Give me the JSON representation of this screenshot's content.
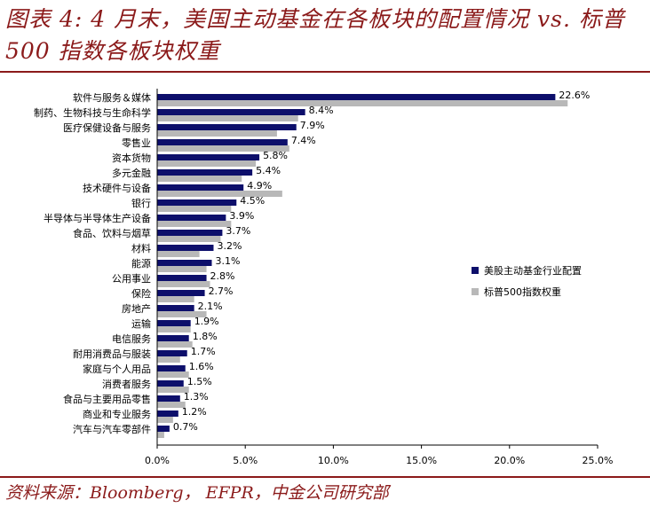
{
  "header": {
    "title": "图表 4: 4 月末，美国主动基金在各板块的配置情况 vs. 标普500 指数各板块权重"
  },
  "footer": {
    "source": "资料来源：Bloomberg，  EFPR，中金公司研究部"
  },
  "chart_data": {
    "type": "bar",
    "orientation": "horizontal",
    "title": "",
    "xlabel": "",
    "ylabel": "",
    "xlim": [
      0,
      25
    ],
    "xticks": [
      0,
      5,
      10,
      15,
      20,
      25
    ],
    "xtick_labels": [
      "0.0%",
      "5.0%",
      "10.0%",
      "15.0%",
      "20.0%",
      "25.0%"
    ],
    "legend_position": "right",
    "categories": [
      "软件与服务＆媒体",
      "制药、生物科技与生命科学",
      "医疗保健设备与服务",
      "零售业",
      "资本货物",
      "多元金融",
      "技术硬件与设备",
      "银行",
      "半导体与半导体生产设备",
      "食品、饮料与烟草",
      "材料",
      "能源",
      "公用事业",
      "保险",
      "房地产",
      "运输",
      "电信服务",
      "耐用消费品与服装",
      "家庭与个人用品",
      "消费者服务",
      "食品与主要用品零售",
      "商业和专业服务",
      "汽车与汽车零部件"
    ],
    "series": [
      {
        "name": "美股主动基金行业配置",
        "color": "#0d0f6b",
        "values": [
          22.6,
          8.4,
          7.9,
          7.4,
          5.8,
          5.4,
          4.9,
          4.5,
          3.9,
          3.7,
          3.2,
          3.1,
          2.8,
          2.7,
          2.1,
          1.9,
          1.8,
          1.7,
          1.6,
          1.5,
          1.3,
          1.2,
          0.7
        ],
        "labels": [
          "22.6%",
          "8.4%",
          "7.9%",
          "7.4%",
          "5.8%",
          "5.4%",
          "4.9%",
          "4.5%",
          "3.9%",
          "3.7%",
          "3.2%",
          "3.1%",
          "2.8%",
          "2.7%",
          "2.1%",
          "1.9%",
          "1.8%",
          "1.7%",
          "1.6%",
          "1.5%",
          "1.3%",
          "1.2%",
          "0.7%"
        ]
      },
      {
        "name": "标普500指数权重",
        "color": "#b8b8b8",
        "values": [
          23.3,
          8.0,
          6.8,
          7.5,
          5.6,
          4.8,
          7.1,
          4.2,
          4.2,
          3.6,
          2.4,
          2.8,
          3.0,
          2.1,
          2.8,
          1.9,
          2.0,
          1.3,
          1.8,
          1.8,
          1.6,
          0.9,
          0.4
        ]
      }
    ]
  }
}
